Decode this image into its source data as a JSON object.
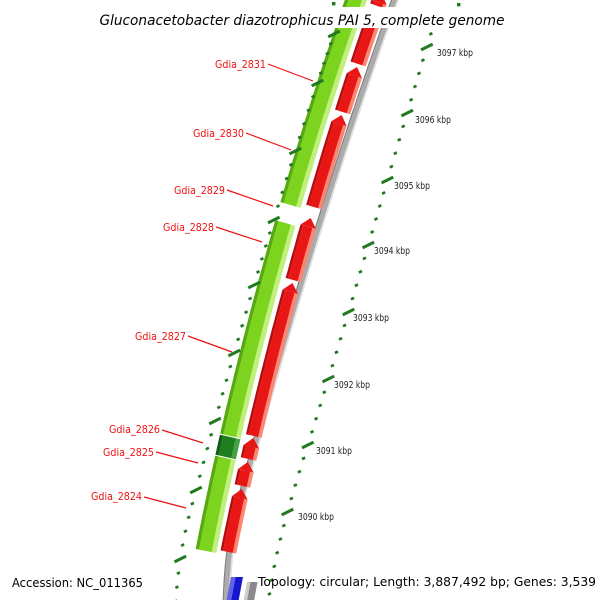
{
  "title": "Gluconacetobacter diazotrophicus PAI 5, complete genome",
  "status_bar": {
    "accession": "Accession: NC_011365",
    "summary": "Topology: circular; Length: 3,887,492 bp; Genes: 3,539"
  },
  "gene_labels": [
    "Gdia_2831",
    "Gdia_2830",
    "Gdia_2829",
    "Gdia_2828",
    "Gdia_2827",
    "Gdia_2826",
    "Gdia_2825",
    "Gdia_2824"
  ],
  "scale_labels": [
    "3097 kbp",
    "3096 kbp",
    "3095 kbp",
    "3094 kbp",
    "3093 kbp",
    "3092 kbp",
    "3091 kbp",
    "3090 kbp"
  ],
  "colors": {
    "gene_track_green": "#7cd41f",
    "gene_track_green_highlight": "#c0ef7c",
    "gene_track_green_shade": "#56aa0e",
    "gene_track_red": "#e91616",
    "gene_track_red_highlight": "#fb8672",
    "gene_track_red_shade": "#b60c0c",
    "special_gene_dark_green": "#1e7e1e",
    "special_gene_highlight": "#45a045",
    "special_gene_shade": "#145c14",
    "backbone_gray": "#ababab",
    "backbone_highlight": "#e0e0e0",
    "backbone_shade": "#7f7f7f",
    "feature_blue": "#1616cd",
    "feature_blue_highlight": "#6060e8",
    "feature_gray": "#8b8b8b",
    "feature_gray_highlight": "#cccccc",
    "tick_green": "#217a21",
    "label_red": "#ee1111",
    "scale_text": "#222222"
  }
}
